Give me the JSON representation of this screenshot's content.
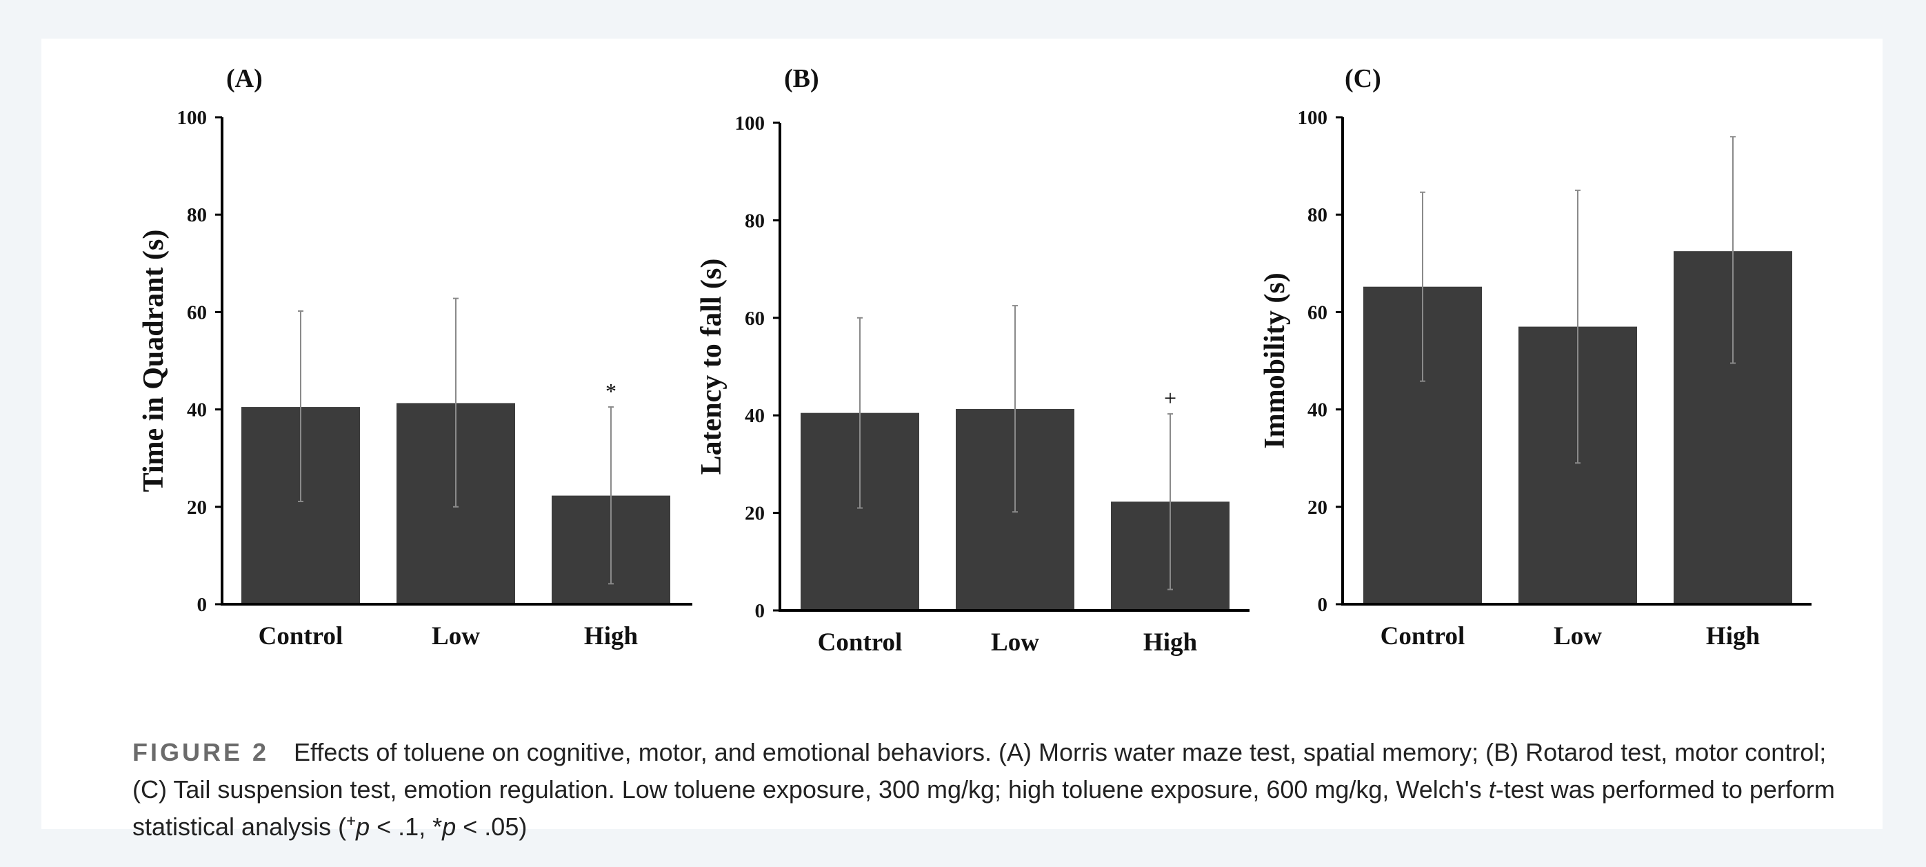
{
  "chart_data": [
    {
      "type": "bar",
      "panel": "(A)",
      "ylabel": "Time in Quadrant (s)",
      "xlabel": "",
      "categories": [
        "Control",
        "Low",
        "High"
      ],
      "values": [
        40.5,
        41.3,
        22.3
      ],
      "error_upper": [
        60.2,
        62.8,
        40.5
      ],
      "error_lower": [
        21.1,
        20.0,
        4.2
      ],
      "significance": [
        "",
        "",
        "*"
      ],
      "ylim": [
        0,
        100
      ],
      "yticks": [
        "0",
        "20",
        "40",
        "60",
        "80",
        "100"
      ]
    },
    {
      "type": "bar",
      "panel": "(B)",
      "ylabel": "Latency to fall (s)",
      "xlabel": "",
      "categories": [
        "Control",
        "Low",
        "High"
      ],
      "values": [
        40.5,
        41.3,
        22.3
      ],
      "error_upper": [
        60.0,
        62.5,
        40.3
      ],
      "error_lower": [
        21.0,
        20.2,
        4.3
      ],
      "significance": [
        "",
        "",
        "+"
      ],
      "ylim": [
        0,
        100
      ],
      "yticks": [
        "0",
        "20",
        "40",
        "60",
        "80",
        "100"
      ]
    },
    {
      "type": "bar",
      "panel": "(C)",
      "ylabel": "Immobility (s)",
      "xlabel": "",
      "categories": [
        "Control",
        "Low",
        "High"
      ],
      "values": [
        65.2,
        57.0,
        72.5
      ],
      "error_upper": [
        84.6,
        85.0,
        96.0
      ],
      "error_lower": [
        45.8,
        29.0,
        49.5
      ],
      "significance": [
        "",
        "",
        ""
      ],
      "ylim": [
        0,
        100
      ],
      "yticks": [
        "0",
        "20",
        "40",
        "60",
        "80",
        "100"
      ]
    }
  ],
  "caption": {
    "label": "FIGURE 2",
    "text_1": "Effects of toluene on cognitive, motor, and emotional behaviors. (A) Morris water maze test, spatial memory; (B) Rotarod test, motor control; (C) Tail suspension test, emotion regulation. Low toluene exposure, 300 mg/kg; high toluene exposure, 600 mg/kg, Welch's ",
    "t_italic": "t",
    "text_2": "-test was performed to perform statistical analysis (",
    "plus_sup": "+",
    "p1": "p",
    "text_3": " < .1, *",
    "p2": "p",
    "text_4": " < .05)"
  },
  "colors": {
    "bar": "#3c3c3c",
    "error_bar": "#8a8a8a",
    "axis": "#000000",
    "background": "#f2f5f8",
    "card": "#ffffff"
  }
}
